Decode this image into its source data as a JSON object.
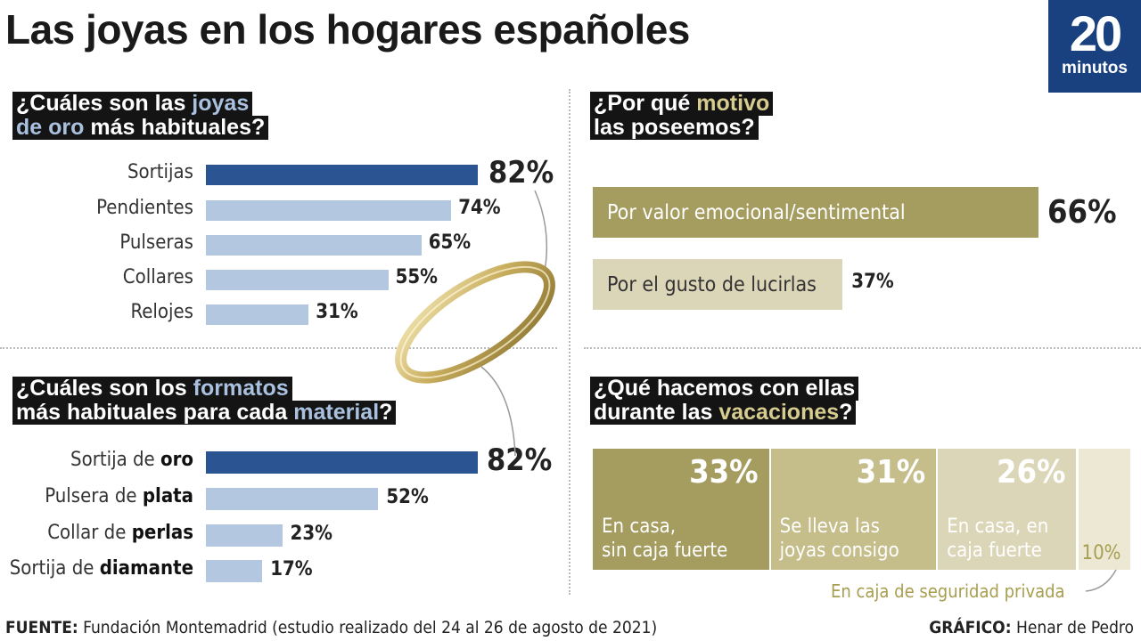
{
  "title": "Las joyas en los hogares españoles",
  "logo": {
    "big": "20",
    "small": "minutos"
  },
  "colors": {
    "navy": "#2b5592",
    "lightblue": "#b4c7e0",
    "olive": "#a59c5f",
    "olive_light": "#c5bd8a",
    "olive_pale": "#dcd6b8",
    "olive_text": "#a89e50",
    "logo": "#19407f"
  },
  "q1": {
    "line1_a": "¿Cuáles son las ",
    "line1_b": "joyas",
    "line2_a": "de oro",
    "line2_b": " más habituales?"
  },
  "q2": {
    "line1_a": "¿Cuáles son los ",
    "line1_b": "formatos",
    "line2_a": "más habituales para cada ",
    "line2_b": "material",
    "line2_c": "?"
  },
  "q3": {
    "line1_a": "¿Por qué ",
    "line1_b": "motivo",
    "line2": "las poseemos?"
  },
  "q4": {
    "line1": "¿Qué hacemos con ellas",
    "line2_a": "durante las ",
    "line2_b": "vacaciones",
    "line2_c": "?"
  },
  "chart_data": [
    {
      "type": "bar",
      "title": "¿Cuáles son las joyas de oro más habituales?",
      "categories": [
        "Sortijas",
        "Pendientes",
        "Pulseras",
        "Collares",
        "Relojes"
      ],
      "values": [
        82,
        74,
        65,
        55,
        31
      ],
      "labels": [
        "82%",
        "74%",
        "65%",
        "55%",
        "31%"
      ],
      "unit": "%"
    },
    {
      "type": "bar",
      "title": "¿Cuáles son los formatos más habituales para cada material?",
      "categories": [
        {
          "pre": "Sortija de ",
          "bold": "oro"
        },
        {
          "pre": "Pulsera de ",
          "bold": "plata"
        },
        {
          "pre": "Collar de ",
          "bold": "perlas"
        },
        {
          "pre": "Sortija de ",
          "bold": "diamante"
        }
      ],
      "values": [
        82,
        52,
        23,
        17
      ],
      "labels": [
        "82%",
        "52%",
        "23%",
        "17%"
      ],
      "unit": "%"
    },
    {
      "type": "bar",
      "title": "¿Por qué motivo las poseemos?",
      "categories": [
        "Por valor emocional/sentimental",
        "Por el gusto de lucirlas"
      ],
      "values": [
        66,
        37
      ],
      "labels": [
        "66%",
        "37%"
      ],
      "unit": "%"
    },
    {
      "type": "bar",
      "title": "¿Qué hacemos con ellas durante las vacaciones?",
      "categories": [
        [
          "En casa,",
          "sin caja fuerte"
        ],
        [
          "Se lleva las",
          "joyas consigo"
        ],
        [
          "En casa, en",
          "caja fuerte"
        ],
        [
          "En caja de seguridad privada"
        ]
      ],
      "values": [
        33,
        31,
        26,
        10
      ],
      "labels": [
        "33%",
        "31%",
        "26%",
        "10%"
      ],
      "unit": "%"
    }
  ],
  "footer": {
    "source_label": "FUENTE:",
    "source_text": " Fundación Montemadrid (estudio realizado del 24 al 26 de agosto de 2021)",
    "credit_label": "GRÁFICO:",
    "credit_text": " Henar de Pedro"
  }
}
